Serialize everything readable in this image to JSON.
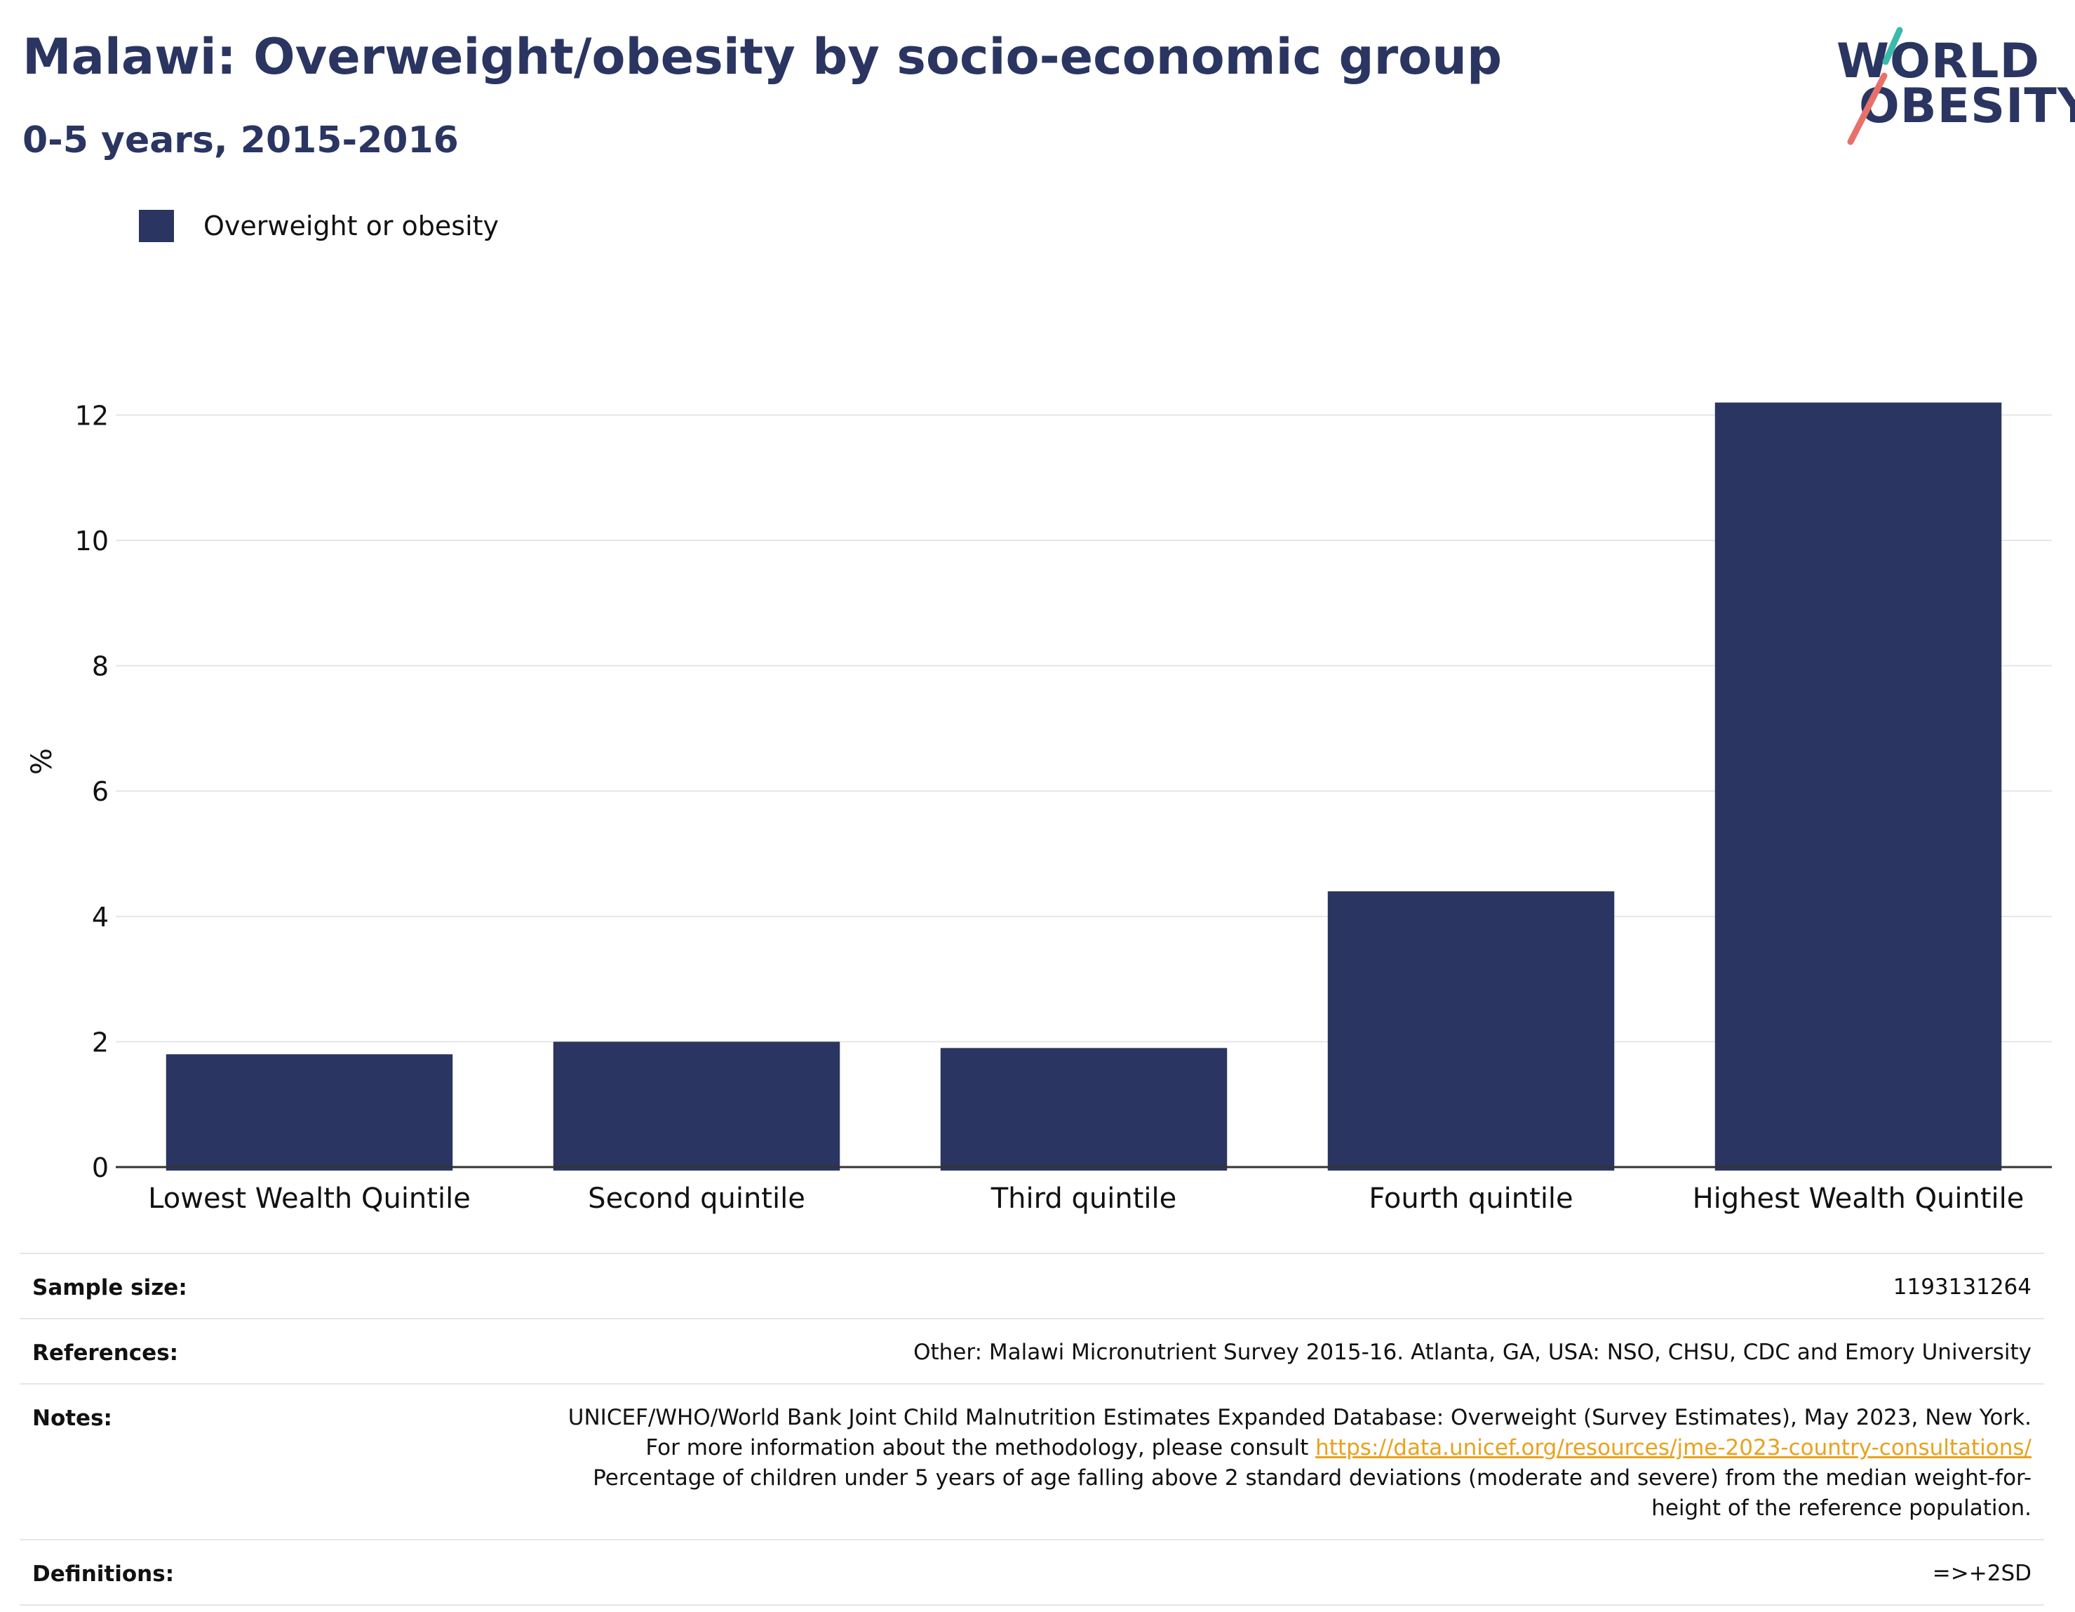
{
  "title": "Malawi: Overweight/obesity by socio-economic group",
  "subtitle": "0-5 years, 2015-2016",
  "logo": {
    "line1": "WORLD",
    "line2": "OBESITY"
  },
  "colors": {
    "bar": "#2a3561",
    "title": "#2a3561",
    "link": "#e8a21c",
    "logo_teal": "#3ab9ad",
    "logo_coral": "#e8706a",
    "grid": "#e6e6e6",
    "axis": "#333333"
  },
  "legend": {
    "label": "Overweight or obesity"
  },
  "chart_data": {
    "type": "bar",
    "categories": [
      "Lowest Wealth Quintile",
      "Second quintile",
      "Third quintile",
      "Fourth quintile",
      "Highest Wealth Quintile"
    ],
    "series": [
      {
        "name": "Overweight or obesity",
        "values": [
          1.8,
          2.0,
          1.9,
          4.4,
          12.2
        ]
      }
    ],
    "ylabel": "%",
    "ylim": [
      0,
      12.8
    ],
    "yticks": [
      0,
      2,
      4,
      6,
      8,
      10,
      12
    ],
    "grid": true,
    "legend_position": "top-left"
  },
  "info": [
    {
      "key": "Sample size:",
      "value": "1193131264"
    },
    {
      "key": "References:",
      "value": "Other: Malawi Micronutrient Survey 2015-16. Atlanta, GA, USA: NSO, CHSU, CDC and Emory University"
    },
    {
      "key": "Notes:",
      "value_pre": "UNICEF/WHO/World Bank Joint Child Malnutrition Estimates Expanded Database: Overweight (Survey Estimates), May 2023, New York. For more information about the methodology, please consult ",
      "link": "https://data.unicef.org/resources/jme-2023-country-consultations/",
      "value_post": " Percentage of children under 5 years of age falling above 2 standard deviations (moderate and severe) from the median weight-for-height of the reference population."
    },
    {
      "key": "Definitions:",
      "value": "=>+2SD"
    }
  ]
}
